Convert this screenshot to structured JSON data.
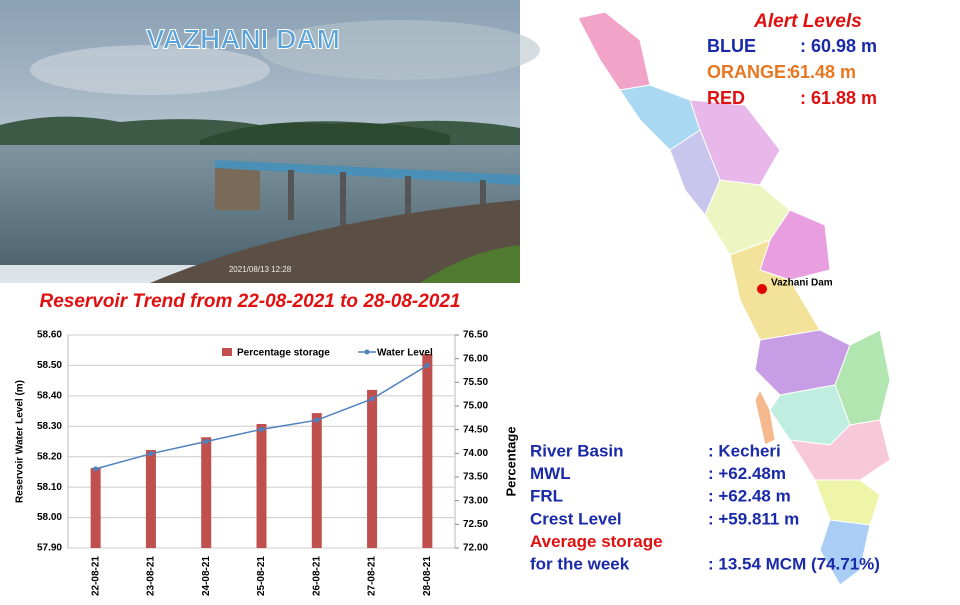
{
  "header": {
    "title": "VAZHANI DAM",
    "photo_timestamp": "2021/08/13 12:28"
  },
  "alert": {
    "title": "Alert Levels",
    "levels": [
      {
        "name": "BLUE",
        "value": ": 60.98 m",
        "color": "#1a2aa8"
      },
      {
        "name": "ORANGE:",
        "value": "61.48 m",
        "color": "#e87722"
      },
      {
        "name": "RED",
        "value": ": 61.88 m",
        "color": "#e01010"
      }
    ]
  },
  "map": {
    "marker_label": "Vazhani Dam"
  },
  "trend_title": "Reservoir Trend from 22-08-2021 to 28-08-2021",
  "chart_data": {
    "type": "bar",
    "categories": [
      "22-08-21",
      "23-08-21",
      "24-08-21",
      "25-08-21",
      "26-08-21",
      "27-08-21",
      "28-08-21"
    ],
    "series": [
      {
        "name": "Percentage storage",
        "type": "bar",
        "axis": "y2",
        "color": "#c0504d",
        "values": [
          73.69,
          74.07,
          74.34,
          74.62,
          74.85,
          75.34,
          76.1
        ]
      },
      {
        "name": "Water Level",
        "type": "line",
        "axis": "y",
        "color": "#4f81bd",
        "values": [
          58.16,
          58.21,
          58.25,
          58.29,
          58.32,
          58.39,
          58.5
        ]
      }
    ],
    "ylabel": "Reservoir Water Level (m)",
    "y2label": "Percentage",
    "ylim": [
      57.9,
      58.6
    ],
    "yticks": [
      {
        "value": 57.9,
        "label": "57.90"
      },
      {
        "value": 58.0,
        "label": "58.00"
      },
      {
        "value": 58.1,
        "label": "58.10"
      },
      {
        "value": 58.2,
        "label": "58.20"
      },
      {
        "value": 58.3,
        "label": "58.30"
      },
      {
        "value": 58.4,
        "label": "58.40"
      },
      {
        "value": 58.5,
        "label": "58.50"
      },
      {
        "value": 58.6,
        "label": "58.60"
      }
    ],
    "y2lim": [
      72.0,
      76.5
    ],
    "y2ticks": [
      {
        "value": 72.0,
        "label": "72.00"
      },
      {
        "value": 72.5,
        "label": "72.50"
      },
      {
        "value": 73.0,
        "label": "73.00"
      },
      {
        "value": 73.5,
        "label": "73.50"
      },
      {
        "value": 74.0,
        "label": "74.00"
      },
      {
        "value": 74.5,
        "label": "74.50"
      },
      {
        "value": 75.0,
        "label": "75.00"
      },
      {
        "value": 75.5,
        "label": "75.50"
      },
      {
        "value": 76.0,
        "label": "76.00"
      },
      {
        "value": 76.5,
        "label": "76.50"
      }
    ],
    "legend": "top"
  },
  "info": {
    "rows": [
      {
        "label": "River Basin",
        "value": ":  Kecheri"
      },
      {
        "label": "MWL",
        "value": ": +62.48m"
      },
      {
        "label": "FRL",
        "value": ": +62.48 m"
      },
      {
        "label": "Crest Level",
        "value": ": +59.811 m"
      },
      {
        "label": "Average storage",
        "value": null
      },
      {
        "label": "for the week",
        "value": ": 13.54 MCM (74.71%)"
      }
    ]
  }
}
